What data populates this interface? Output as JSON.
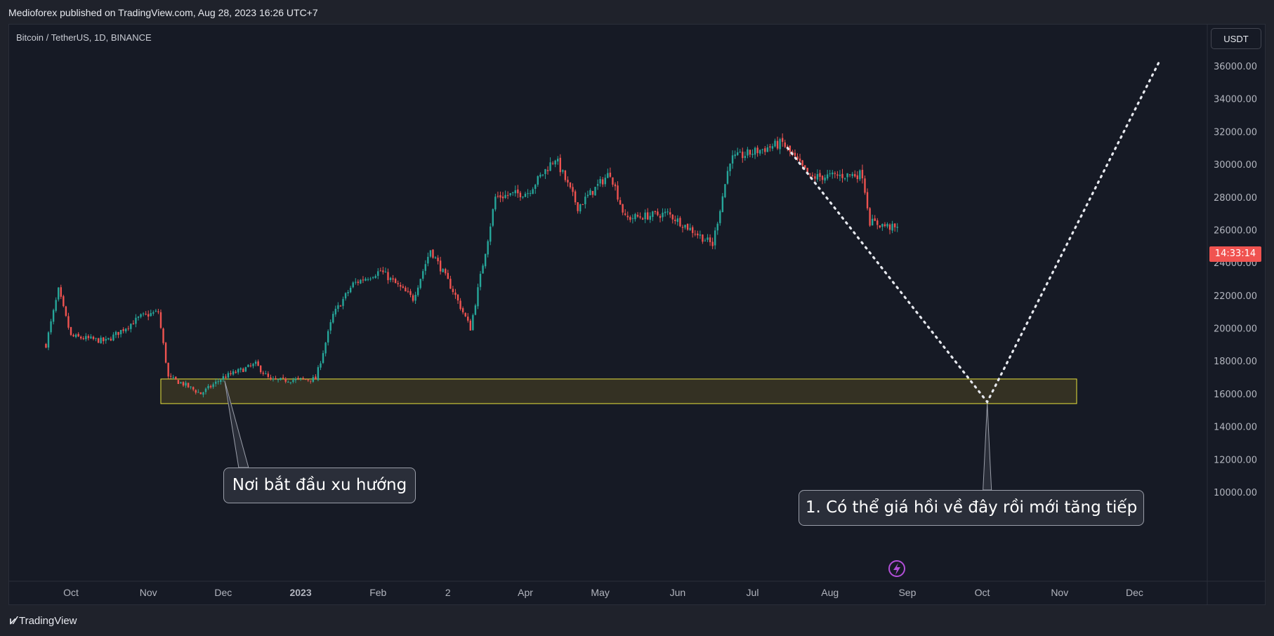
{
  "header": {
    "published": "Medioforex published on TradingView.com, Aug 28, 2023 16:26 UTC+7"
  },
  "symbol_label": "Bitcoin / TetherUS, 1D, BINANCE",
  "currency_button": "USDT",
  "last_price_tag": "14:33:14",
  "brand": {
    "name": "TradingView",
    "icon": "tradingview-logo-icon"
  },
  "lightning_icon": "lightning-icon",
  "annotations": {
    "left_callout": "Nơi bắt đầu xu hướng",
    "right_callout": "1. Có thể giá hồi về đây rồi mới tăng tiếp"
  },
  "colors": {
    "up": "#26a69a",
    "down": "#ef5350",
    "zone_border": "#e9e43c",
    "zone_fill": "#3a3623",
    "projection": "#e6e8ee",
    "price_tag": "#f05350",
    "lightning": "#b24fd8"
  },
  "chart_data": {
    "type": "candlestick",
    "y_axis": {
      "ticks": [
        "36000.00",
        "34000.00",
        "32000.00",
        "30000.00",
        "28000.00",
        "26000.00",
        "24000.00",
        "22000.00",
        "20000.00",
        "18000.00",
        "16000.00",
        "14000.00",
        "12000.00",
        "10000.00"
      ],
      "range": [
        8500,
        37500
      ]
    },
    "x_axis": {
      "ticks": [
        "Oct",
        "Nov",
        "Dec",
        "2023",
        "Feb",
        "2",
        "Apr",
        "May",
        "Jun",
        "Jul",
        "Aug",
        "Sep",
        "Oct",
        "Nov",
        "Dec"
      ]
    },
    "series_anchor_prices": [
      {
        "date": "2022-09-21",
        "price": 19000
      },
      {
        "date": "2022-09-26",
        "price": 22300
      },
      {
        "date": "2022-10-01",
        "price": 19500
      },
      {
        "date": "2022-10-15",
        "price": 19200
      },
      {
        "date": "2022-10-29",
        "price": 20700
      },
      {
        "date": "2022-11-05",
        "price": 21000
      },
      {
        "date": "2022-11-09",
        "price": 17000
      },
      {
        "date": "2022-11-15",
        "price": 16600
      },
      {
        "date": "2022-11-22",
        "price": 16000
      },
      {
        "date": "2022-12-01",
        "price": 17000
      },
      {
        "date": "2022-12-14",
        "price": 17800
      },
      {
        "date": "2022-12-20",
        "price": 16800
      },
      {
        "date": "2023-01-07",
        "price": 16900
      },
      {
        "date": "2023-01-14",
        "price": 20800
      },
      {
        "date": "2023-01-22",
        "price": 22700
      },
      {
        "date": "2023-02-02",
        "price": 23500
      },
      {
        "date": "2023-02-15",
        "price": 21800
      },
      {
        "date": "2023-02-22",
        "price": 24800
      },
      {
        "date": "2023-03-03",
        "price": 22300
      },
      {
        "date": "2023-03-10",
        "price": 20000
      },
      {
        "date": "2023-03-17",
        "price": 25500
      },
      {
        "date": "2023-03-20",
        "price": 28000
      },
      {
        "date": "2023-04-02",
        "price": 28300
      },
      {
        "date": "2023-04-13",
        "price": 30400
      },
      {
        "date": "2023-04-22",
        "price": 27400
      },
      {
        "date": "2023-05-05",
        "price": 29500
      },
      {
        "date": "2023-05-11",
        "price": 26700
      },
      {
        "date": "2023-05-28",
        "price": 27000
      },
      {
        "date": "2023-06-15",
        "price": 25100
      },
      {
        "date": "2023-06-22",
        "price": 30300
      },
      {
        "date": "2023-07-13",
        "price": 31300
      },
      {
        "date": "2023-07-24",
        "price": 29200
      },
      {
        "date": "2023-08-14",
        "price": 29400
      },
      {
        "date": "2023-08-17",
        "price": 26500
      },
      {
        "date": "2023-08-28",
        "price": 26050
      }
    ],
    "support_zone": {
      "from": "2022-11-06",
      "to": "2024-01-02",
      "low": 15400,
      "high": 16900
    },
    "projection_path": [
      {
        "date": "2023-07-15",
        "price": 31000
      },
      {
        "date": "2023-10-03",
        "price": 15500
      },
      {
        "date": "2023-12-11",
        "price": 36300
      }
    ]
  }
}
